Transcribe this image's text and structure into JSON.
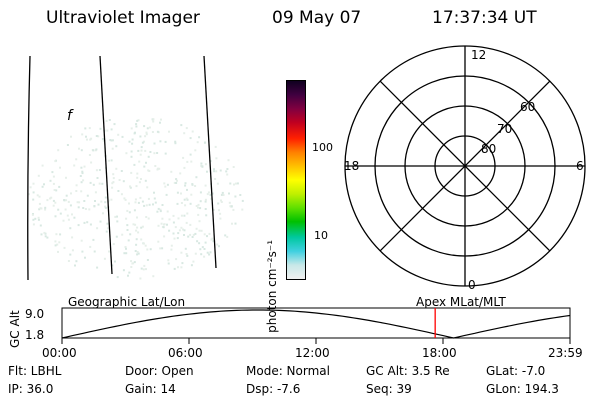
{
  "header": {
    "instrument": "Ultraviolet Imager",
    "date": "09 May 07",
    "time": "17:37:34 UT"
  },
  "image_panel": {
    "mark": "f"
  },
  "colorbar": {
    "unit_label": "photon cm⁻²s⁻¹",
    "ticks": [
      "100",
      "10"
    ],
    "colors": [
      "#f0f0f0",
      "#c8e8e8",
      "#40d0e0",
      "#00c8a0",
      "#00c000",
      "#60e000",
      "#c0f000",
      "#ffff00",
      "#ffc000",
      "#ff8000",
      "#ff2000",
      "#c00020",
      "#800040",
      "#400040",
      "#100020"
    ]
  },
  "polar_plot": {
    "mlt_labels": {
      "top": "12",
      "right": "6",
      "bottom": "0",
      "left": "18"
    },
    "lat_labels": [
      "80",
      "70",
      "60"
    ]
  },
  "orbit_plot": {
    "left_title": "Geographic Lat/Lon",
    "right_title": "Apex MLat/MLT",
    "y_label": "GC Alt",
    "y_ticks": [
      "9.0",
      "1.8"
    ],
    "x_ticks": [
      "00:00",
      "06:00",
      "12:00",
      "18:00",
      "23:59"
    ],
    "current_time_marker_hour": 17.63,
    "marker_color": "#ff0000"
  },
  "info": {
    "row1": {
      "flt": "Flt: LBHL",
      "door": "Door: Open",
      "mode": "Mode: Normal",
      "gcalt": "GC Alt: 3.5 Re",
      "glat": "GLat:  -7.0"
    },
    "row2": {
      "ip": "IP: 36.0",
      "gain": "Gain: 14",
      "dsp": "Dsp:   -7.6",
      "seq": "Seq: 39",
      "glon": "GLon: 194.3"
    }
  }
}
